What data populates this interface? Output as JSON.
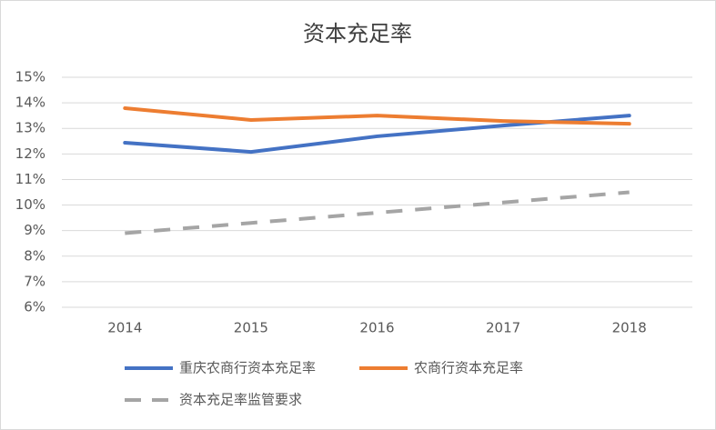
{
  "chart_data": {
    "type": "line",
    "title": "资本充足率",
    "categories": [
      "2014",
      "2015",
      "2016",
      "2017",
      "2018"
    ],
    "series": [
      {
        "name": "重庆农商行资本充足率",
        "color": "#4472c4",
        "dashed": false,
        "values": [
          12.44,
          12.08,
          12.69,
          13.11,
          13.5
        ]
      },
      {
        "name": "农商行资本充足率",
        "color": "#ed7d31",
        "dashed": false,
        "values": [
          13.79,
          13.33,
          13.5,
          13.29,
          13.18
        ]
      },
      {
        "name": "资本充足率监管要求",
        "color": "#a5a5a5",
        "dashed": true,
        "values": [
          8.9,
          9.3,
          9.7,
          10.1,
          10.5
        ]
      }
    ],
    "ylim": [
      6,
      15
    ],
    "yticks": [
      {
        "value": 6,
        "label": "6%"
      },
      {
        "value": 7,
        "label": "7%"
      },
      {
        "value": 8,
        "label": "8%"
      },
      {
        "value": 9,
        "label": "9%"
      },
      {
        "value": 10,
        "label": "10%"
      },
      {
        "value": 11,
        "label": "11%"
      },
      {
        "value": 12,
        "label": "12%"
      },
      {
        "value": 13,
        "label": "13%"
      },
      {
        "value": 14,
        "label": "14%"
      },
      {
        "value": 15,
        "label": "15%"
      }
    ],
    "grid": true
  }
}
